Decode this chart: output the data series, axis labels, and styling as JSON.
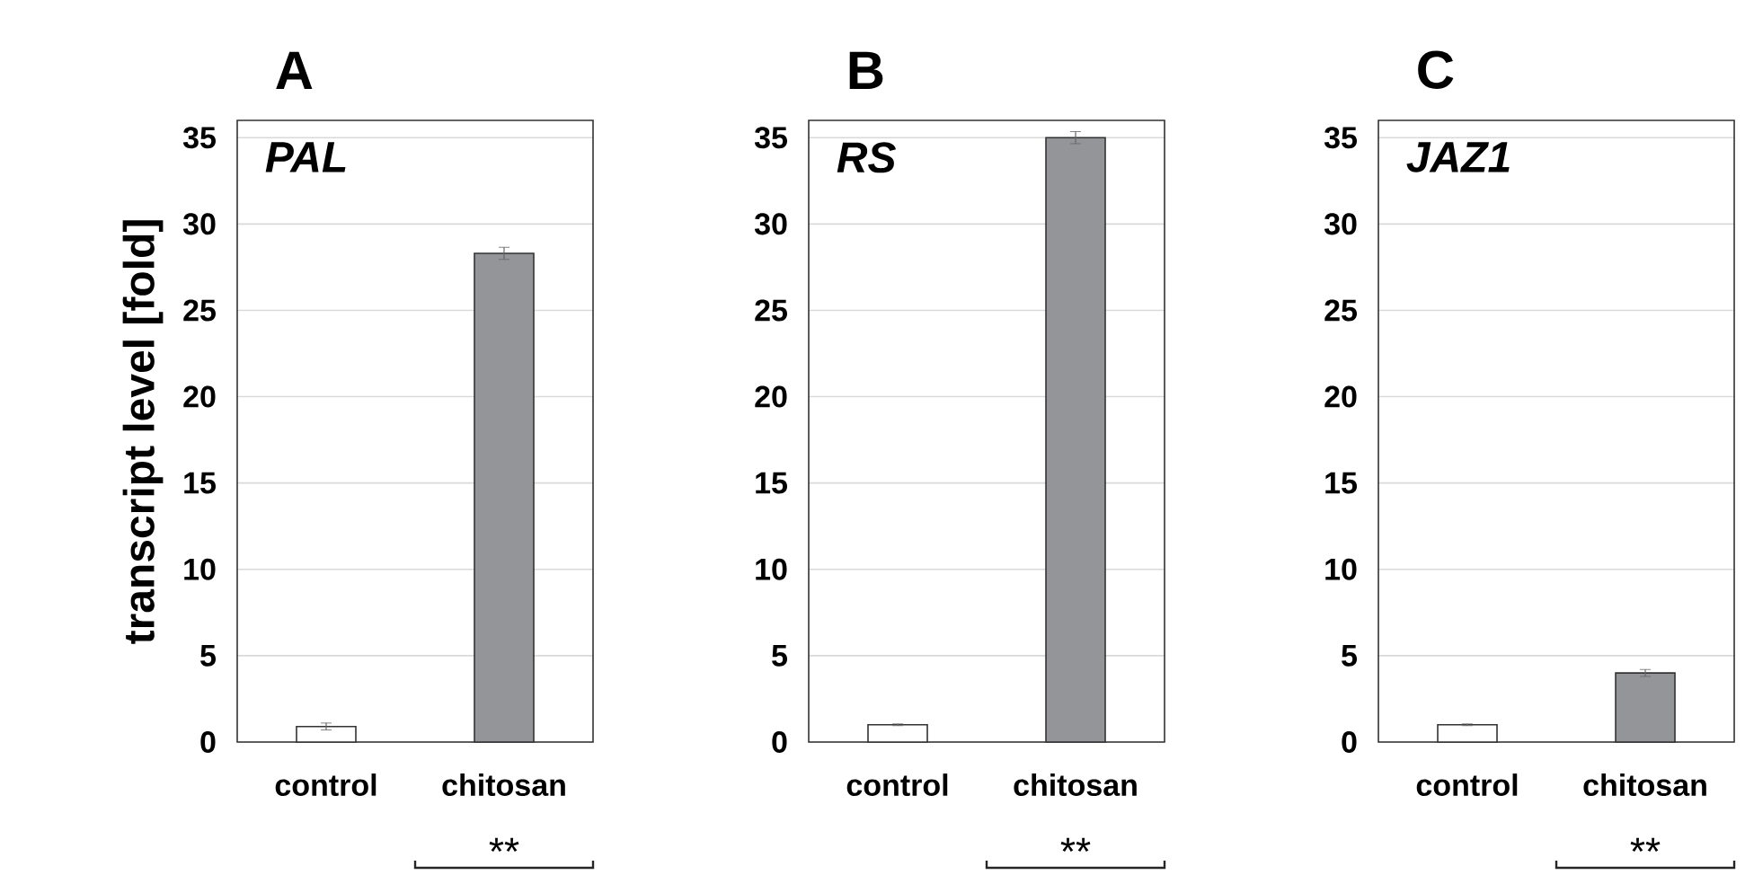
{
  "chart_data": [
    {
      "type": "bar",
      "title": "A",
      "ylabel": "transcript level [fold]",
      "categories": [
        "control",
        "chitosan"
      ],
      "values": [
        0.9,
        28.3
      ],
      "errors": [
        0.2,
        0.35
      ],
      "colors": [
        "#ffffff",
        "#939598"
      ],
      "ylim": [
        0,
        36
      ],
      "yticks": [
        0,
        5,
        10,
        15,
        20,
        25,
        30,
        35
      ],
      "grid": "y",
      "annotations": [
        "PAL",
        "**"
      ]
    },
    {
      "type": "bar",
      "title": "B",
      "categories": [
        "control",
        "chitosan"
      ],
      "values": [
        1.0,
        35.0
      ],
      "errors": [
        0.05,
        0.35
      ],
      "colors": [
        "#ffffff",
        "#939598"
      ],
      "ylim": [
        0,
        36
      ],
      "yticks": [
        0,
        5,
        10,
        15,
        20,
        25,
        30,
        35
      ],
      "grid": "y",
      "annotations": [
        "RS",
        "**"
      ]
    },
    {
      "type": "bar",
      "title": "C",
      "categories": [
        "control",
        "chitosan"
      ],
      "values": [
        1.0,
        4.0
      ],
      "errors": [
        0.05,
        0.2
      ],
      "colors": [
        "#ffffff",
        "#939598"
      ],
      "ylim": [
        0,
        36
      ],
      "yticks": [
        0,
        5,
        10,
        15,
        20,
        25,
        30,
        35
      ],
      "grid": "y",
      "annotations": [
        "JAZ1",
        "**"
      ]
    }
  ]
}
